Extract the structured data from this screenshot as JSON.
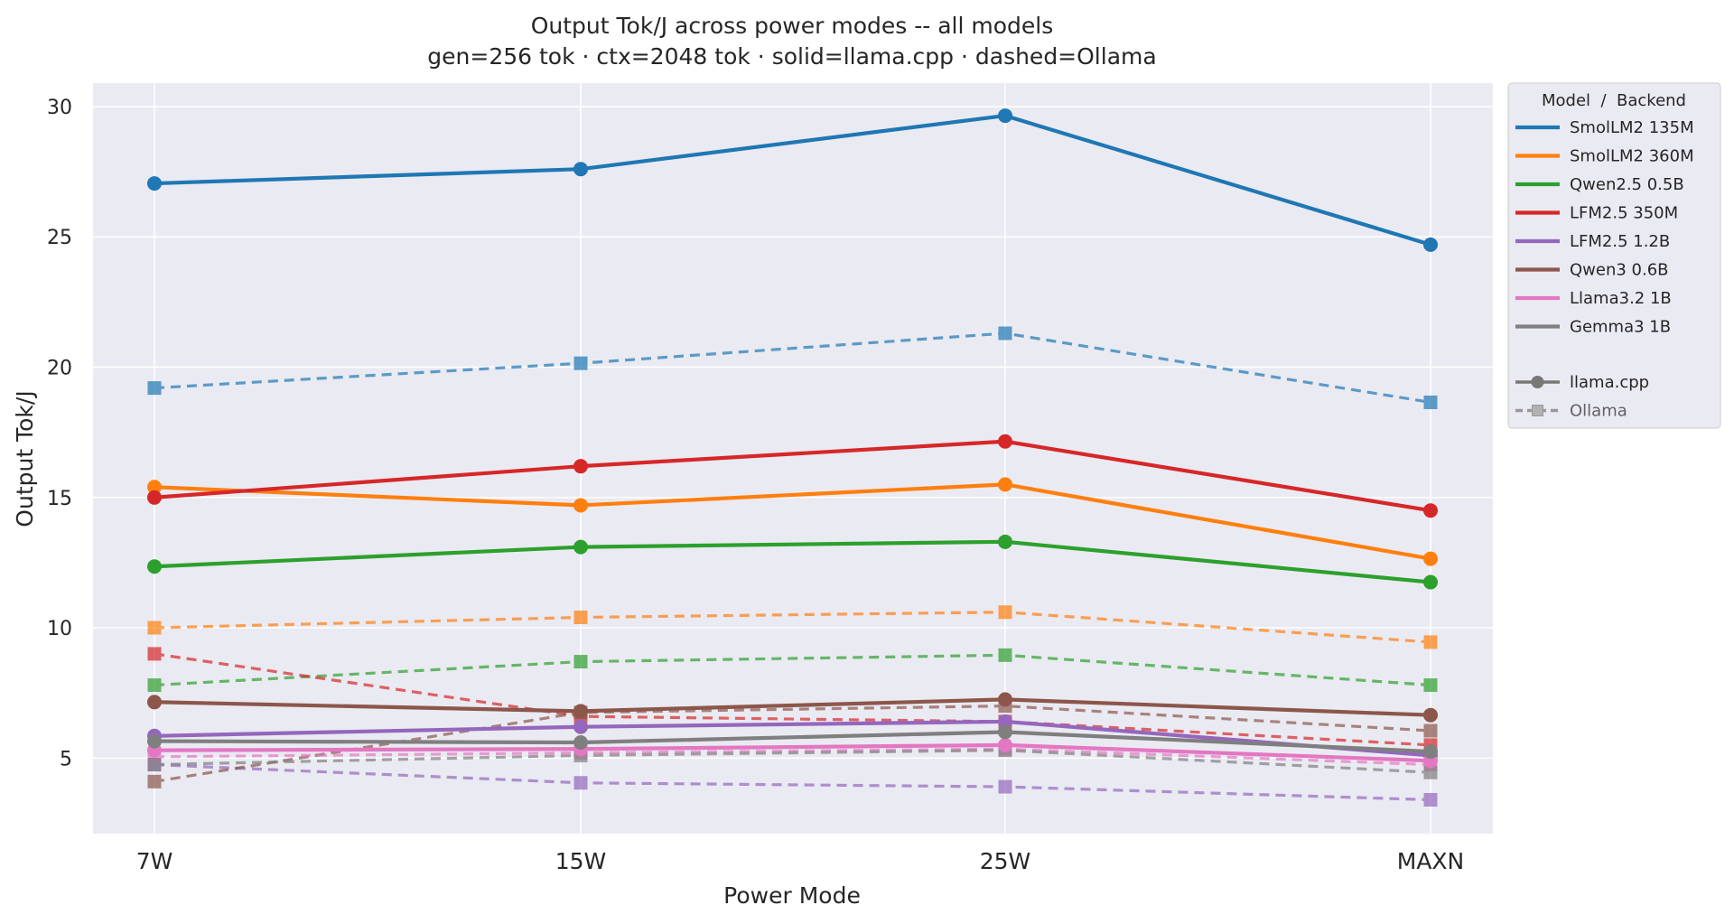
{
  "chart_data": {
    "type": "line",
    "title": "Output Tok/J across power modes -- all models",
    "subtitle": "gen=256 tok · ctx=2048 tok · solid=llama.cpp · dashed=Ollama",
    "xlabel": "Power Mode",
    "ylabel": "Output Tok/J",
    "categories": [
      "7W",
      "15W",
      "25W",
      "MAXN"
    ],
    "ylim": [
      2.1,
      30.9
    ],
    "yticks": [
      5,
      10,
      15,
      20,
      25,
      30
    ],
    "grid": true,
    "legend": {
      "title": "Model  /  Backend",
      "placement": "outside-right",
      "style_entries": [
        {
          "label": "llama.cpp",
          "linestyle": "solid",
          "marker": "circle"
        },
        {
          "label": "Ollama",
          "linestyle": "dashed",
          "marker": "square"
        }
      ]
    },
    "series": [
      {
        "name": "SmolLM2 135M",
        "color": "#1f77b4",
        "llama_cpp": [
          27.05,
          27.6,
          29.65,
          24.7
        ],
        "ollama": [
          19.2,
          20.15,
          21.3,
          18.65
        ]
      },
      {
        "name": "SmolLM2 360M",
        "color": "#ff7f0e",
        "llama_cpp": [
          15.4,
          14.7,
          15.5,
          12.65
        ],
        "ollama": [
          10.0,
          10.4,
          10.6,
          9.45
        ]
      },
      {
        "name": "Qwen2.5 0.5B",
        "color": "#2ca02c",
        "llama_cpp": [
          12.35,
          13.1,
          13.3,
          11.75
        ],
        "ollama": [
          7.8,
          8.7,
          8.95,
          7.8
        ]
      },
      {
        "name": "LFM2.5 350M",
        "color": "#d62728",
        "llama_cpp": [
          15.0,
          16.2,
          17.15,
          14.5
        ],
        "ollama": [
          9.0,
          6.6,
          6.4,
          5.5
        ]
      },
      {
        "name": "LFM2.5 1.2B",
        "color": "#9467bd",
        "llama_cpp": [
          5.85,
          6.2,
          6.4,
          5.1
        ],
        "ollama": [
          4.75,
          4.05,
          3.9,
          3.4
        ]
      },
      {
        "name": "Qwen3 0.6B",
        "color": "#8c564b",
        "llama_cpp": [
          7.15,
          6.8,
          7.25,
          6.65
        ],
        "ollama": [
          4.1,
          6.75,
          7.0,
          6.05
        ]
      },
      {
        "name": "Llama3.2 1B",
        "color": "#e377c2",
        "llama_cpp": [
          5.3,
          5.35,
          5.5,
          4.9
        ],
        "ollama": [
          5.05,
          5.2,
          5.35,
          4.75
        ]
      },
      {
        "name": "Gemma3 1B",
        "color": "#7f7f7f",
        "llama_cpp": [
          5.65,
          5.6,
          6.0,
          5.25
        ],
        "ollama": [
          4.75,
          5.1,
          5.3,
          4.45
        ]
      }
    ]
  }
}
